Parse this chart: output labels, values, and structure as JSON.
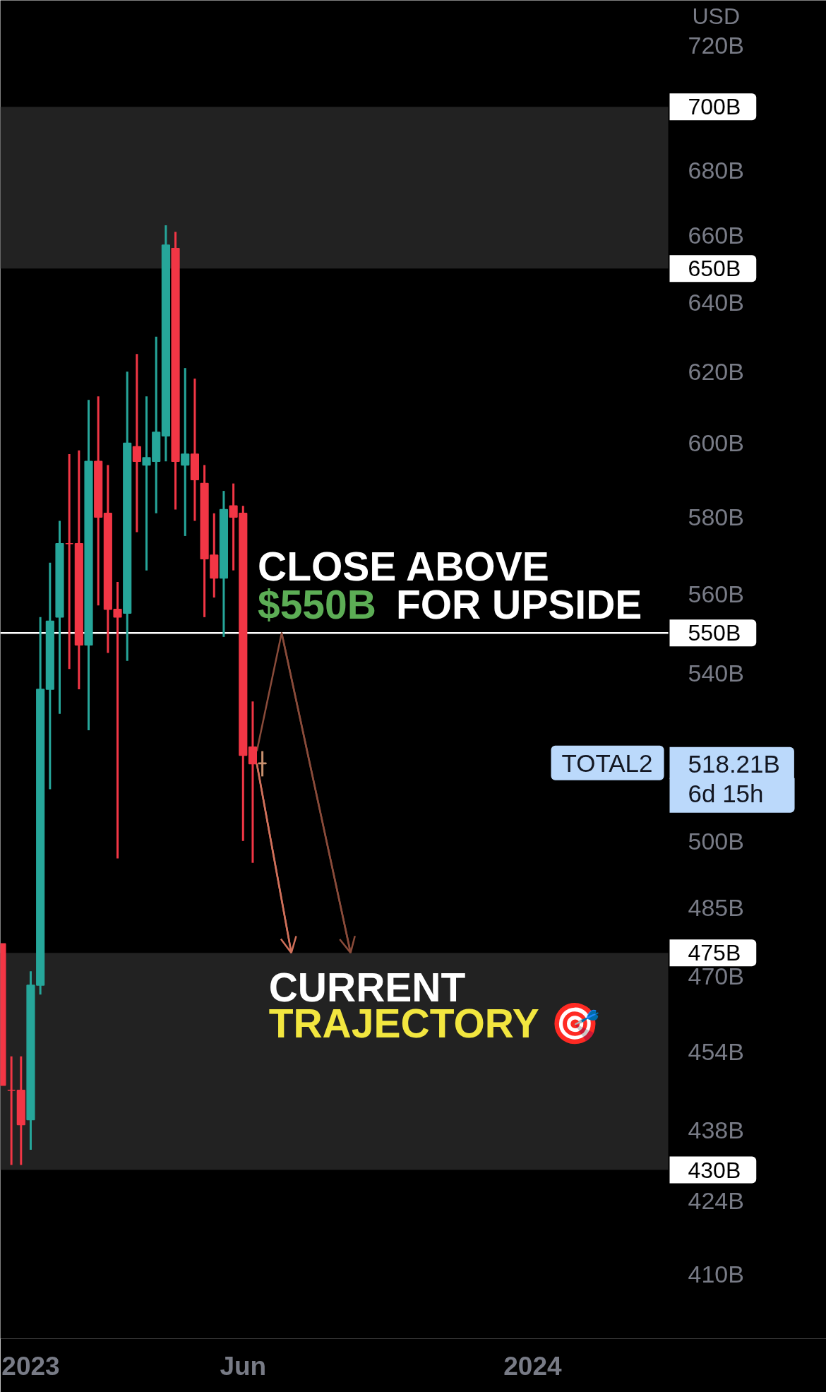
{
  "chart_data": {
    "type": "candlestick",
    "x": [
      "2022-12-12",
      "2022-12-19",
      "2022-12-26",
      "2023-01-02",
      "2023-01-09",
      "2023-01-16",
      "2023-01-23",
      "2023-01-30",
      "2023-02-06",
      "2023-02-13",
      "2023-02-20",
      "2023-02-27",
      "2023-03-06",
      "2023-03-13",
      "2023-03-20",
      "2023-03-27",
      "2023-04-03",
      "2023-04-10",
      "2023-04-17",
      "2023-04-24",
      "2023-05-01",
      "2023-05-08",
      "2023-05-15",
      "2023-05-22",
      "2023-05-29",
      "2023-06-05",
      "2023-06-12",
      "2023-06-19"
    ],
    "ohlc": [
      [
        477,
        477,
        447,
        447
      ],
      [
        446,
        453,
        431,
        446
      ],
      [
        446,
        453,
        431,
        439
      ],
      [
        440,
        471,
        434,
        468
      ],
      [
        468,
        554,
        466,
        536
      ],
      [
        536,
        568,
        512,
        553
      ],
      [
        554,
        579,
        530,
        573
      ],
      [
        573,
        597,
        541,
        573
      ],
      [
        573,
        598,
        536,
        547
      ],
      [
        547,
        612,
        526,
        595
      ],
      [
        595,
        613,
        557,
        580
      ],
      [
        581,
        594,
        545,
        556
      ],
      [
        556,
        563,
        496,
        554
      ],
      [
        555,
        620,
        543,
        600
      ],
      [
        599,
        625,
        576,
        595
      ],
      [
        594,
        613,
        566,
        596
      ],
      [
        595,
        630,
        581,
        603
      ],
      [
        602,
        663,
        595,
        657
      ],
      [
        656,
        661,
        582,
        595
      ],
      [
        594,
        621,
        575,
        597
      ],
      [
        597,
        618,
        579,
        590
      ],
      [
        589,
        594,
        554,
        569
      ],
      [
        570,
        581,
        559,
        564
      ],
      [
        564,
        587,
        549,
        582
      ],
      [
        583,
        589,
        566,
        580
      ],
      [
        581,
        583,
        500,
        520
      ],
      [
        522,
        533,
        495,
        518
      ],
      [
        518,
        521,
        515,
        518.21
      ]
    ],
    "colors": [
      "#f23645",
      "#f23645",
      "#f23645",
      "#26a69a",
      "#26a69a",
      "#26a69a",
      "#26a69a",
      "#f23645",
      "#f23645",
      "#26a69a",
      "#f23645",
      "#f23645",
      "#f23645",
      "#26a69a",
      "#f23645",
      "#26a69a",
      "#26a69a",
      "#26a69a",
      "#f23645",
      "#26a69a",
      "#f23645",
      "#f23645",
      "#f23645",
      "#26a69a",
      "#f23645",
      "#f23645",
      "#f23645",
      "#c8906e"
    ],
    "series": [
      {
        "type": "line",
        "color": "#8a4b3a",
        "x": [
          "2023-06-15",
          "2023-07-03",
          "2023-08-22"
        ],
        "values": [
          521,
          550,
          475
        ]
      },
      {
        "type": "line",
        "color": "#d0705a",
        "x": [
          "2023-06-15",
          "2023-07-10"
        ],
        "values": [
          518,
          475
        ]
      }
    ],
    "log": true,
    "xlim": [
      "2022-12-11",
      "2024-08-01"
    ],
    "ylim": [
      398,
      735
    ],
    "xticks": [
      {
        "value": "2023-01-02",
        "label": "2023"
      },
      {
        "value": "2023-06-05",
        "label": "Jun"
      },
      {
        "value": "2024-01-01",
        "label": "2024"
      }
    ],
    "yticks": [
      {
        "value": 720,
        "label": "720B"
      },
      {
        "value": 680,
        "label": "680B"
      },
      {
        "value": 660,
        "label": "660B"
      },
      {
        "value": 640,
        "label": "640B"
      },
      {
        "value": 620,
        "label": "620B"
      },
      {
        "value": 600,
        "label": "600B"
      },
      {
        "value": 580,
        "label": "580B"
      },
      {
        "value": 560,
        "label": "560B"
      },
      {
        "value": 540,
        "label": "540B"
      },
      {
        "value": 500,
        "label": "500B"
      },
      {
        "value": 485,
        "label": "485B"
      },
      {
        "value": 470,
        "label": "470B"
      },
      {
        "value": 454,
        "label": "454B"
      },
      {
        "value": 438,
        "label": "438B"
      },
      {
        "value": 424,
        "label": "424B"
      },
      {
        "value": 410,
        "label": "410B"
      }
    ],
    "bands": [
      {
        "axis": "y",
        "from": 650,
        "to": 700,
        "color": "#222222"
      },
      {
        "axis": "y",
        "from": 430,
        "to": 475,
        "color": "#222222"
      }
    ],
    "ref_lines": [
      {
        "axis": "y",
        "value": 550,
        "label": "550B",
        "color": "#ffffff"
      }
    ],
    "annotations": [
      "USD",
      {
        "text": "CLOSE ABOVE",
        "x": "2023-07-03",
        "y": 550
      },
      {
        "text": "$550B",
        "x": "2023-07-03",
        "y": 550
      },
      {
        "text": "FOR UPSIDE",
        "x": "2023-07-03",
        "y": 550
      },
      {
        "text": "CURRENT",
        "x": "2023-07-10",
        "y": 475
      },
      {
        "text": "TRAJECTORY 🎯",
        "x": "2023-07-10",
        "y": 475
      },
      "700B",
      "650B",
      "475B",
      "430B",
      "TOTAL2",
      "518.21B",
      "6d 15h"
    ]
  }
}
